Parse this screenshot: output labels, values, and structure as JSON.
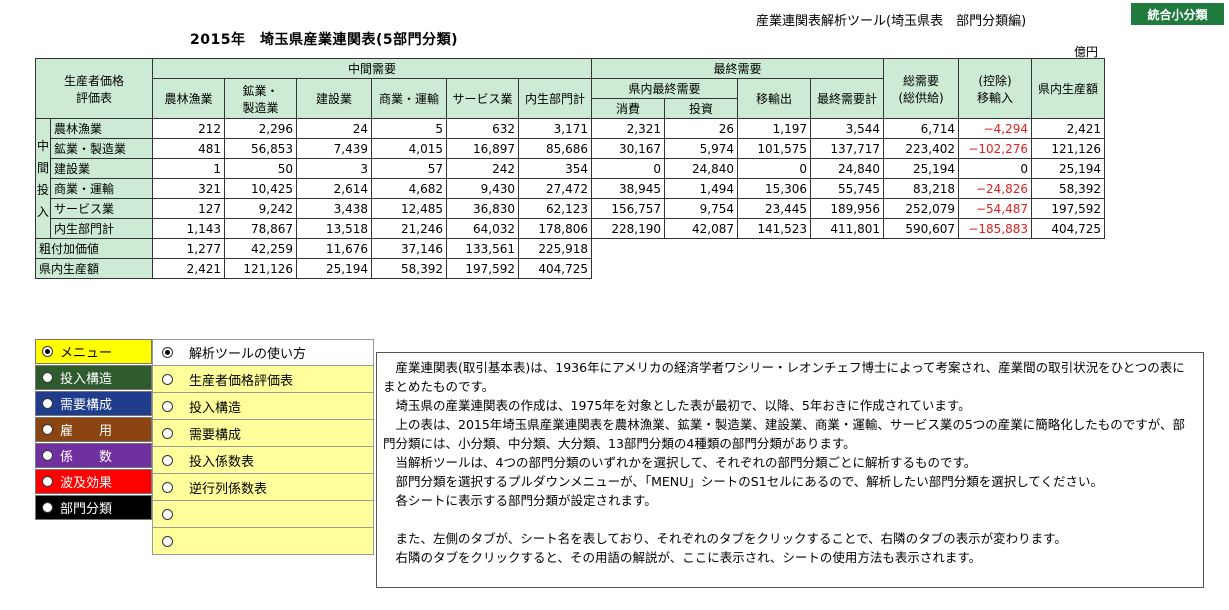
{
  "title": "2015年　埼玉県産業連関表(5部門分類)",
  "tool_name": "産業連関表解析ツール(埼玉県表　部門分類編)",
  "toggle_button": "統合小分類",
  "unit": "億円",
  "table": {
    "corner": "生産者価格\n評価表",
    "group_intermediate": "中間需要",
    "group_final": "最終需要",
    "cols_intermediate": [
      "農林漁業",
      "鉱業・\n製造業",
      "建設業",
      "商業・運輸",
      "サービス業",
      "内生部門計"
    ],
    "final_subgroup": "県内最終需要",
    "final_sub_cols": [
      "消費",
      "投資"
    ],
    "col_export": "移輸出",
    "col_final_total": "最終需要計",
    "col_total_demand": "総需要\n(総供給)",
    "col_import": "(控除)\n移輸入",
    "col_output": "県内生産額",
    "vertical_label": [
      "中",
      "間",
      "投",
      "入"
    ],
    "rows": [
      {
        "label": "農林漁業",
        "values": [
          "212",
          "2,296",
          "24",
          "5",
          "632",
          "3,171",
          "2,321",
          "26",
          "1,197",
          "3,544",
          "6,714",
          "−4,294",
          "2,421"
        ]
      },
      {
        "label": "鉱業・製造業",
        "values": [
          "481",
          "56,853",
          "7,439",
          "4,015",
          "16,897",
          "85,686",
          "30,167",
          "5,974",
          "101,575",
          "137,717",
          "223,402",
          "−102,276",
          "121,126"
        ]
      },
      {
        "label": "建設業",
        "values": [
          "1",
          "50",
          "3",
          "57",
          "242",
          "354",
          "0",
          "24,840",
          "0",
          "24,840",
          "25,194",
          "0",
          "25,194"
        ]
      },
      {
        "label": "商業・運輸",
        "values": [
          "321",
          "10,425",
          "2,614",
          "4,682",
          "9,430",
          "27,472",
          "38,945",
          "1,494",
          "15,306",
          "55,745",
          "83,218",
          "−24,826",
          "58,392"
        ]
      },
      {
        "label": "サービス業",
        "values": [
          "127",
          "9,242",
          "3,438",
          "12,485",
          "36,830",
          "62,123",
          "156,757",
          "9,754",
          "23,445",
          "189,956",
          "252,079",
          "−54,487",
          "197,592"
        ]
      },
      {
        "label": "内生部門計",
        "values": [
          "1,143",
          "78,867",
          "13,518",
          "21,246",
          "64,032",
          "178,806",
          "228,190",
          "42,087",
          "141,523",
          "411,801",
          "590,607",
          "−185,883",
          "404,725"
        ]
      }
    ],
    "value_added": {
      "label": "粗付加価値",
      "values": [
        "1,277",
        "42,259",
        "11,676",
        "37,146",
        "133,561",
        "225,918"
      ]
    },
    "output_row": {
      "label": "県内生産額",
      "values": [
        "2,421",
        "121,126",
        "25,194",
        "58,392",
        "197,592",
        "404,725"
      ]
    }
  },
  "tabs": [
    {
      "label": "メニュー",
      "bg": "#ffff00",
      "color": "#000",
      "selected": true
    },
    {
      "label": "投入構造",
      "bg": "#2e5a2e",
      "color": "#fff",
      "selected": false
    },
    {
      "label": "需要構成",
      "bg": "#1f3d8c",
      "color": "#fff",
      "selected": false
    },
    {
      "label": "雇　　用",
      "bg": "#8b4513",
      "color": "#fff",
      "selected": false
    },
    {
      "label": "係　　数",
      "bg": "#7030a0",
      "color": "#fff",
      "selected": false
    },
    {
      "label": "波及効果",
      "bg": "#ff0000",
      "color": "#fff",
      "selected": false
    },
    {
      "label": "部門分類",
      "bg": "#000000",
      "color": "#fff",
      "selected": false
    }
  ],
  "menu_items": [
    {
      "label": "解析ツールの使い方",
      "selected": true
    },
    {
      "label": "生産者価格評価表",
      "selected": false
    },
    {
      "label": "投入構造",
      "selected": false
    },
    {
      "label": "需要構成",
      "selected": false
    },
    {
      "label": "投入係数表",
      "selected": false
    },
    {
      "label": "逆行列係数表",
      "selected": false
    },
    {
      "label": "",
      "selected": false
    },
    {
      "label": "",
      "selected": false
    }
  ],
  "description": [
    "　産業連関表(取引基本表)は、1936年にアメリカの経済学者ワシリー・レオンチェフ博士によって考案され、産業間の取引状況をひとつの表にまとめたものです。",
    "　埼玉県の産業連関表の作成は、1975年を対象とした表が最初で、以降、5年おきに作成されています。",
    "　上の表は、2015年埼玉県産業連関表を農林漁業、鉱業・製造業、建設業、商業・運輸、サービス業の5つの産業に簡略化したものですが、部門分類には、小分類、中分類、大分類、13部門分類の4種類の部門分類があります。",
    "　当解析ツールは、4つの部門分類のいずれかを選択して、それぞれの部門分類ごとに解析するものです。",
    "　部門分類を選択するプルダウンメニューが、「MENU」シートのS1セルにあるので、解析したい部門分類を選択してください。",
    "　各シートに表示する部門分類が設定されます。",
    "",
    "　また、左側のタブが、シート名を表しており、それぞれのタブをクリックすることで、右隣のタブの表示が変わります。",
    "　右隣のタブをクリックすると、その用語の解説が、ここに表示され、シートの使用方法も表示されます。"
  ]
}
